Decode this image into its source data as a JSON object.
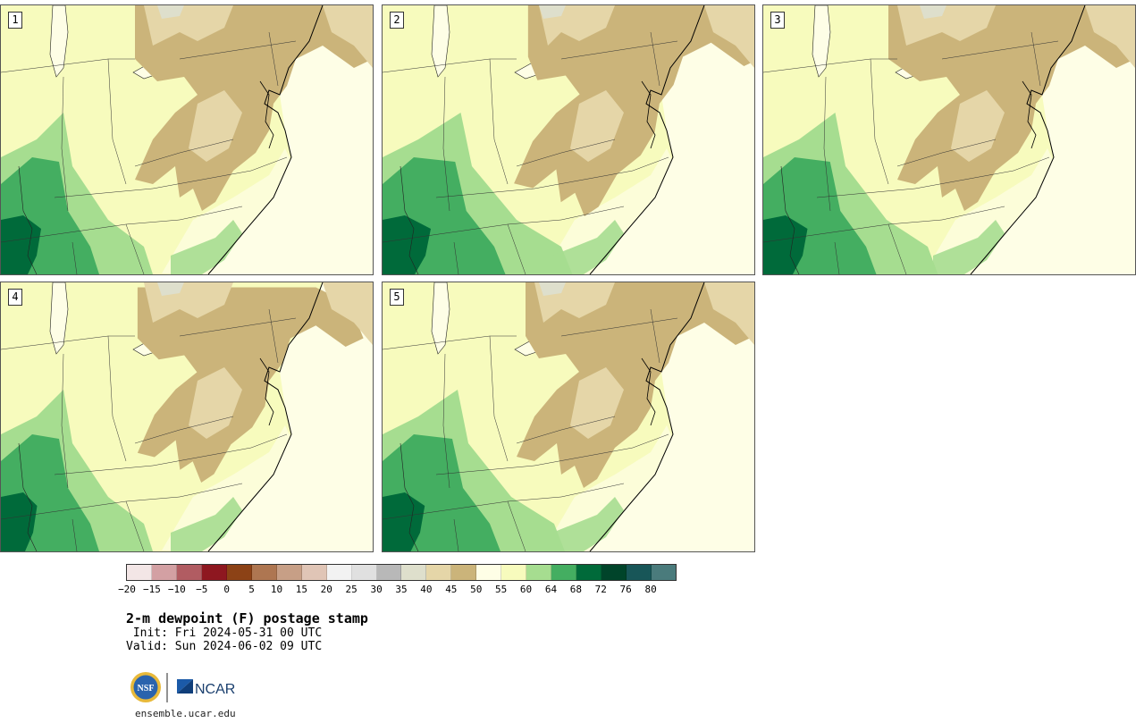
{
  "panels": [
    {
      "label": "1"
    },
    {
      "label": "2"
    },
    {
      "label": "3"
    },
    {
      "label": "4"
    },
    {
      "label": "5"
    }
  ],
  "colorbar": {
    "colors": [
      "#f3e6e6",
      "#d3a0a3",
      "#b15c62",
      "#8e1720",
      "#8c4216",
      "#ae7651",
      "#c79f86",
      "#e0c5b6",
      "#f2f2f2",
      "#e0e0e0",
      "#b8b8b8",
      "#dedfcc",
      "#e5d6a8",
      "#cbb47a",
      "#fefee6",
      "#f7fbbd",
      "#a6dd90",
      "#44ae61",
      "#006a3a",
      "#00442a",
      "#185658",
      "#4a7b7c"
    ],
    "ticks": [
      "−20",
      "−15",
      "−10",
      "−5",
      "0",
      "5",
      "10",
      "15",
      "20",
      "25",
      "30",
      "35",
      "40",
      "45",
      "50",
      "55",
      "60",
      "64",
      "68",
      "72",
      "76",
      "80"
    ]
  },
  "title": "2-m dewpoint (F) postage stamp",
  "init": " Init: Fri 2024-05-31 00 UTC",
  "valid": "Valid: Sun 2024-06-02 09 UTC",
  "footer": {
    "org_logo_text": "NCAR",
    "nsf_logo_text": "NSF",
    "site": "ensemble.ucar.edu"
  },
  "map_colors": {
    "ocean": "#fefee6",
    "land_base": "#f7fbbd",
    "dry_dark": "#cbb47a",
    "dry_light": "#e5d6a8",
    "dry_gray": "#dedfcc",
    "moist_light": "#a6dd90",
    "moist_mid": "#44ae61",
    "moist_dark": "#006a3a"
  }
}
